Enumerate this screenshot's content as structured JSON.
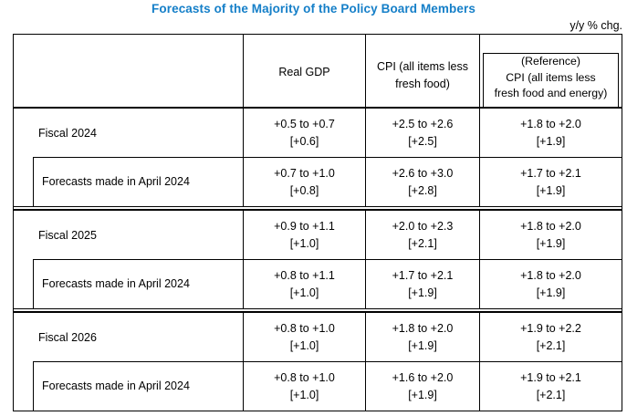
{
  "title": "Forecasts of the Majority of the Policy Board Members",
  "unit_note": "y/y % chg.",
  "title_color": "#157FC8",
  "table": {
    "header": {
      "real_gdp": "Real GDP",
      "cpi": "CPI (all items less\nfresh food)",
      "reference": "(Reference)\nCPI (all items less\nfresh food and energy)"
    },
    "blocks": [
      {
        "current": {
          "label": "Fiscal 2024",
          "real_gdp": {
            "range": "+0.5 to +0.7",
            "median": "[+0.6]"
          },
          "cpi": {
            "range": "+2.5 to +2.6",
            "median": "[+2.5]"
          },
          "reference": {
            "range": "+1.8 to +2.0",
            "median": "[+1.9]"
          }
        },
        "previous": {
          "label": "Forecasts made in April 2024",
          "real_gdp": {
            "range": "+0.7 to +1.0",
            "median": "[+0.8]"
          },
          "cpi": {
            "range": "+2.6 to +3.0",
            "median": "[+2.8]"
          },
          "reference": {
            "range": "+1.7 to +2.1",
            "median": "[+1.9]"
          }
        }
      },
      {
        "current": {
          "label": "Fiscal 2025",
          "real_gdp": {
            "range": "+0.9 to +1.1",
            "median": "[+1.0]"
          },
          "cpi": {
            "range": "+2.0 to +2.3",
            "median": "[+2.1]"
          },
          "reference": {
            "range": "+1.8 to +2.0",
            "median": "[+1.9]"
          }
        },
        "previous": {
          "label": "Forecasts made in April 2024",
          "real_gdp": {
            "range": "+0.8 to +1.1",
            "median": "[+1.0]"
          },
          "cpi": {
            "range": "+1.7 to +2.1",
            "median": "[+1.9]"
          },
          "reference": {
            "range": "+1.8 to +2.0",
            "median": "[+1.9]"
          }
        }
      },
      {
        "current": {
          "label": "Fiscal 2026",
          "real_gdp": {
            "range": "+0.8 to +1.0",
            "median": "[+1.0]"
          },
          "cpi": {
            "range": "+1.8 to +2.0",
            "median": "[+1.9]"
          },
          "reference": {
            "range": "+1.9 to +2.2",
            "median": "[+2.1]"
          }
        },
        "previous": {
          "label": "Forecasts made in April 2024",
          "real_gdp": {
            "range": "+0.8 to +1.0",
            "median": "[+1.0]"
          },
          "cpi": {
            "range": "+1.6 to +2.0",
            "median": "[+1.9]"
          },
          "reference": {
            "range": "+1.9 to +2.1",
            "median": "[+2.1]"
          }
        }
      }
    ]
  }
}
